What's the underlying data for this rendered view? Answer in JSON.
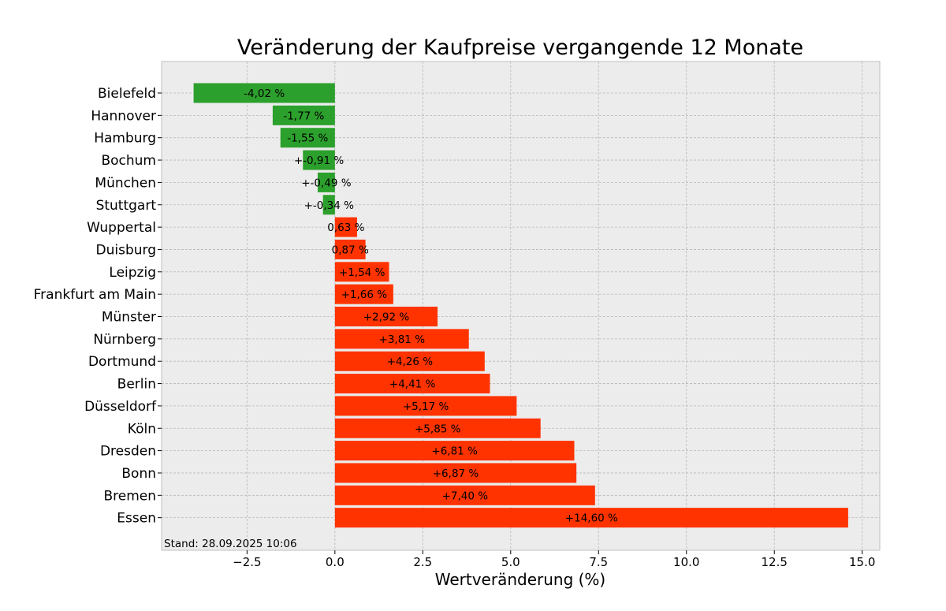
{
  "chart_data": {
    "type": "bar",
    "orientation": "horizontal",
    "title": "Veränderung der Kaufpreise vergangende 12 Monate",
    "xlabel": "Wertveränderung (%)",
    "ylabel": "",
    "xlim": [
      -4.93,
      15.5
    ],
    "xticks": [
      -2.5,
      0.0,
      2.5,
      5.0,
      7.5,
      10.0,
      12.5,
      15.0
    ],
    "xtick_labels": [
      "−2.5",
      "0.0",
      "2.5",
      "5.0",
      "7.5",
      "10.0",
      "12.5",
      "15.0"
    ],
    "grid": true,
    "categories": [
      "Bielefeld",
      "Hannover",
      "Hamburg",
      "Bochum",
      "München",
      "Stuttgart",
      "Wuppertal",
      "Duisburg",
      "Leipzig",
      "Frankfurt am Main",
      "Münster",
      "Nürnberg",
      "Dortmund",
      "Berlin",
      "Düsseldorf",
      "Köln",
      "Dresden",
      "Bonn",
      "Bremen",
      "Essen"
    ],
    "values": [
      -4.02,
      -1.77,
      -1.55,
      -0.91,
      -0.49,
      -0.34,
      0.63,
      0.87,
      1.54,
      1.66,
      2.92,
      3.81,
      4.26,
      4.41,
      5.17,
      5.85,
      6.81,
      6.87,
      7.4,
      14.6
    ],
    "data_labels": [
      "-4,02 %",
      "-1,77 %",
      "-1,55 %",
      "+-0,91 %",
      "+-0,49 %",
      "+-0,34 %",
      "0,63 %",
      "0,87 %",
      "+1,54 %",
      "+1,66 %",
      "+2,92 %",
      "+3,81 %",
      "+4,26 %",
      "+4,41 %",
      "+5,17 %",
      "+5,85 %",
      "+6,81 %",
      "+6,87 %",
      "+7,40 %",
      "+14,60 %"
    ],
    "colors": {
      "negative": "#2ca02c",
      "positive": "#ff3300",
      "background": "#ececec"
    },
    "footnote": "Stand: 28.09.2025 10:06"
  }
}
